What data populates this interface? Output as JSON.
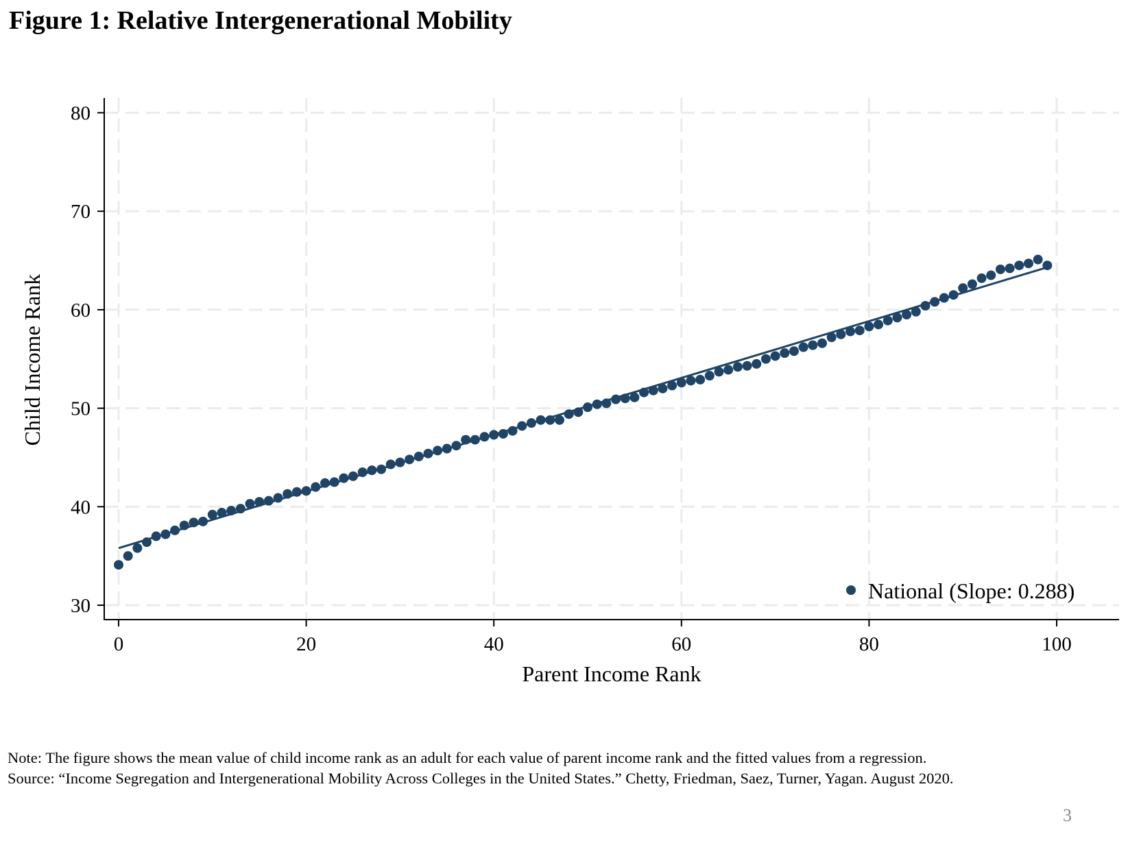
{
  "figure_title": "Figure 1: Relative Intergenerational Mobility",
  "note": "Note: The figure shows the mean value of child income rank as an adult for each value of parent income rank and the fitted values from a regression.",
  "source": "Source: “Income Segregation and Intergenerational Mobility Across Colleges in the United States.”  Chetty, Friedman, Saez, Turner, Yagan. August 2020.",
  "page_number": "3",
  "chart_data": {
    "type": "scatter",
    "title": "Figure 1: Relative Intergenerational Mobility",
    "xlabel": "Parent Income Rank",
    "ylabel": "Child Income Rank",
    "xlim": [
      0,
      100
    ],
    "ylim": [
      30,
      80
    ],
    "xticks": [
      "0",
      "20",
      "40",
      "60",
      "80",
      "100"
    ],
    "yticks": [
      "30",
      "40",
      "50",
      "60",
      "70",
      "80"
    ],
    "grid": true,
    "legend_position": "bottom-right",
    "color": "#1f4466",
    "series": [
      {
        "name": "National (Slope: 0.288)",
        "x": [
          0,
          1,
          2,
          3,
          4,
          5,
          6,
          7,
          8,
          9,
          10,
          11,
          12,
          13,
          14,
          15,
          16,
          17,
          18,
          19,
          20,
          21,
          22,
          23,
          24,
          25,
          26,
          27,
          28,
          29,
          30,
          31,
          32,
          33,
          34,
          35,
          36,
          37,
          38,
          39,
          40,
          41,
          42,
          43,
          44,
          45,
          46,
          47,
          48,
          49,
          50,
          51,
          52,
          53,
          54,
          55,
          56,
          57,
          58,
          59,
          60,
          61,
          62,
          63,
          64,
          65,
          66,
          67,
          68,
          69,
          70,
          71,
          72,
          73,
          74,
          75,
          76,
          77,
          78,
          79,
          80,
          81,
          82,
          83,
          84,
          85,
          86,
          87,
          88,
          89,
          90,
          91,
          92,
          93,
          94,
          95,
          96,
          97,
          98,
          99
        ],
        "y": [
          34.1,
          35.0,
          35.8,
          36.4,
          37.0,
          37.2,
          37.6,
          38.1,
          38.4,
          38.5,
          39.2,
          39.4,
          39.6,
          39.8,
          40.3,
          40.5,
          40.6,
          40.9,
          41.3,
          41.5,
          41.6,
          42.0,
          42.4,
          42.5,
          42.9,
          43.1,
          43.5,
          43.7,
          43.8,
          44.3,
          44.5,
          44.8,
          45.1,
          45.4,
          45.7,
          45.9,
          46.2,
          46.8,
          46.8,
          47.1,
          47.3,
          47.4,
          47.7,
          48.2,
          48.5,
          48.8,
          48.8,
          48.8,
          49.4,
          49.6,
          50.1,
          50.4,
          50.5,
          50.9,
          51.0,
          51.1,
          51.6,
          51.8,
          52.0,
          52.3,
          52.6,
          52.8,
          52.9,
          53.3,
          53.7,
          53.9,
          54.2,
          54.3,
          54.5,
          55.0,
          55.3,
          55.6,
          55.8,
          56.2,
          56.4,
          56.6,
          57.2,
          57.5,
          57.8,
          57.9,
          58.3,
          58.5,
          58.9,
          59.2,
          59.5,
          59.8,
          60.4,
          60.8,
          61.2,
          61.5,
          62.2,
          62.6,
          63.2,
          63.5,
          64.1,
          64.2,
          64.5,
          64.7,
          65.1,
          64.5
        ]
      }
    ],
    "fit_line": {
      "intercept": 35.8,
      "slope": 0.288,
      "x_range": [
        0,
        99
      ]
    }
  }
}
